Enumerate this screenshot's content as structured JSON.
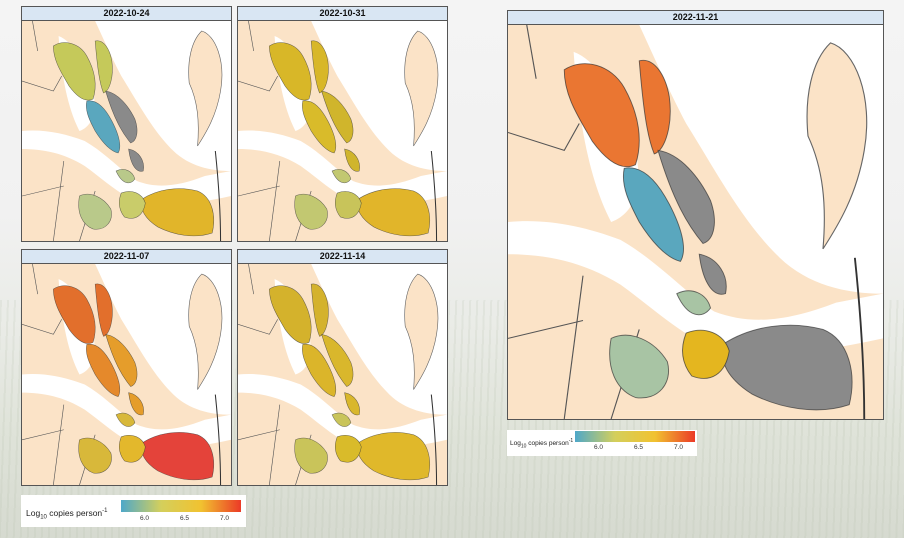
{
  "panels": [
    {
      "date": "2022-10-24",
      "fills": {
        "north": "#c5c95a",
        "mid": "#5aa7be",
        "mid2": "#8a8a8a",
        "south": "#e1b52a",
        "south2": "#c9cc6a",
        "west": "#b9c98a"
      }
    },
    {
      "date": "2022-10-31",
      "fills": {
        "north": "#d8b728",
        "mid": "#d9bb2a",
        "mid2": "#d0b52c",
        "south": "#e1b52a",
        "south2": "#c8c45a",
        "west": "#c2c871"
      }
    },
    {
      "date": "2022-11-07",
      "fills": {
        "north": "#e26f2c",
        "mid": "#e5892b",
        "mid2": "#e59d2b",
        "south": "#e4433a",
        "south2": "#e3b82c",
        "west": "#d8b83a"
      }
    },
    {
      "date": "2022-11-14",
      "fills": {
        "north": "#d4b22c",
        "mid": "#dbb52a",
        "mid2": "#d9b72c",
        "south": "#e0b82a",
        "south2": "#d9bb2a",
        "west": "#c9c45a"
      }
    },
    {
      "date": "2022-11-21",
      "fills": {
        "north": "#ea7632",
        "mid": "#5aa7be",
        "mid2": "#8a8a8a",
        "south": "#8a8a8a",
        "south2": "#e4b61f",
        "west": "#a8c4a4"
      }
    }
  ],
  "legend": {
    "label_prefix": "Log",
    "label_sub": "10",
    "label_main": " copies person",
    "label_sup": "-1",
    "ticks": [
      "6.0",
      "6.5",
      "7.0"
    ],
    "tick_values": [
      6.0,
      6.5,
      7.0
    ],
    "range": [
      5.7,
      7.2
    ],
    "colors": [
      "#4ea8c9",
      "#d4cf5c",
      "#f1c230",
      "#eb3a27"
    ]
  },
  "colors": {
    "land": "#fbe3c7",
    "water": "#ffffff",
    "strip": "#d9e6f3"
  }
}
